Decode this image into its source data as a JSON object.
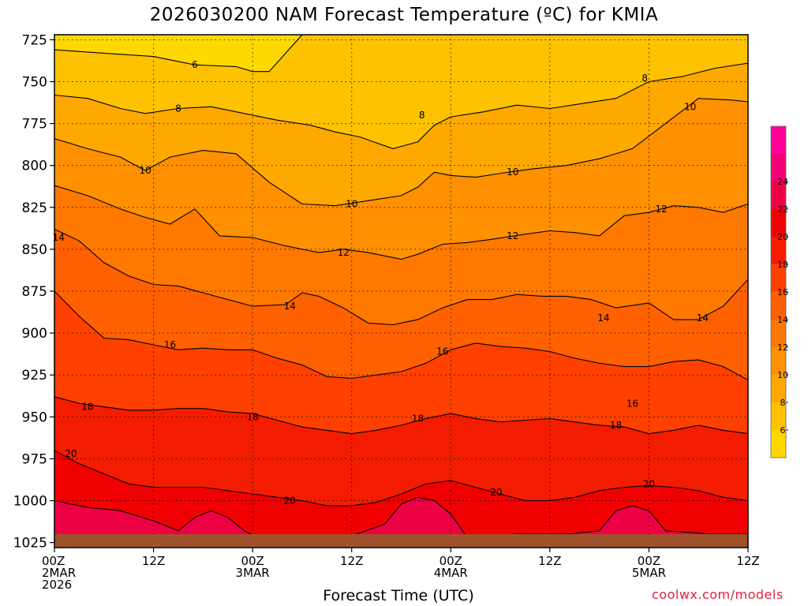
{
  "title": "2026030200 NAM Forecast Temperature (ºC) for KMIA",
  "xlabel": "Forecast Time (UTC)",
  "credit": "coolwx.com/models",
  "chart_data": {
    "type": "heatmap",
    "title": "2026030200 NAM Forecast Temperature (ºC) for KMIA",
    "xlabel": "Forecast Time (UTC)",
    "ylabel": "",
    "x_ticks": [
      {
        "l1": "00Z",
        "l2": "2MAR",
        "l3": "2026",
        "h": 0
      },
      {
        "l1": "12Z",
        "l2": "",
        "l3": "",
        "h": 12
      },
      {
        "l1": "00Z",
        "l2": "3MAR",
        "l3": "",
        "h": 24
      },
      {
        "l1": "12Z",
        "l2": "",
        "l3": "",
        "h": 36
      },
      {
        "l1": "00Z",
        "l2": "4MAR",
        "l3": "",
        "h": 48
      },
      {
        "l1": "12Z",
        "l2": "",
        "l3": "",
        "h": 60
      },
      {
        "l1": "00Z",
        "l2": "5MAR",
        "l3": "",
        "h": 72
      },
      {
        "l1": "12Z",
        "l2": "",
        "l3": "",
        "h": 84
      }
    ],
    "xlim_hours": [
      0,
      84
    ],
    "y_ticks": [
      725,
      750,
      775,
      800,
      825,
      850,
      875,
      900,
      925,
      950,
      975,
      1000,
      1025
    ],
    "ylim": [
      722,
      1028
    ],
    "y_unit": "hPa",
    "grid": true,
    "colorbar": {
      "levels": [
        4,
        6,
        8,
        10,
        12,
        14,
        16,
        18,
        20,
        22,
        24,
        26
      ],
      "labels": [
        6,
        8,
        10,
        12,
        14,
        16,
        18,
        20,
        22,
        24
      ],
      "colors": [
        "#ffd800",
        "#ffc200",
        "#ffa800",
        "#ff9000",
        "#ff7800",
        "#ff6000",
        "#ff4000",
        "#f41c00",
        "#f00000",
        "#ee0044",
        "#f20077",
        "#ff0099"
      ]
    },
    "ground_color": "#a0522d",
    "contours": [
      {
        "level": 6,
        "label_at_h": 17,
        "hours": [
          0,
          6,
          12,
          17,
          22,
          24,
          26,
          30,
          36,
          48,
          60,
          72,
          84
        ],
        "pressures": [
          731,
          733,
          735,
          740,
          741,
          744,
          744,
          722,
          722,
          722,
          722,
          722,
          722
        ]
      },
      {
        "level": 8,
        "label_at_h": 15,
        "hours": [
          0,
          4,
          8,
          11,
          15,
          19,
          23,
          27,
          31,
          34,
          37,
          41,
          44,
          46,
          48,
          52,
          56,
          60,
          64,
          68,
          72,
          76,
          80,
          84
        ],
        "pressures": [
          758,
          760,
          766,
          769,
          766,
          765,
          769,
          773,
          776,
          780,
          783,
          790,
          786,
          776,
          771,
          768,
          764,
          766,
          763,
          760,
          750,
          747,
          742,
          739
        ]
      },
      {
        "level": 10,
        "label_at_h": 11,
        "hours": [
          0,
          4,
          8,
          11,
          14,
          18,
          22,
          26,
          30,
          34,
          38,
          42,
          44,
          46,
          48,
          51,
          55,
          58,
          62,
          66,
          70,
          74,
          78,
          82,
          84
        ],
        "pressures": [
          784,
          790,
          795,
          803,
          795,
          791,
          793,
          810,
          823,
          824,
          821,
          818,
          813,
          804,
          806,
          807,
          804,
          802,
          800,
          796,
          790,
          775,
          760,
          761,
          762
        ]
      },
      {
        "level": 12,
        "label_at_h": 35,
        "hours": [
          0,
          4,
          8,
          11,
          14,
          17,
          20,
          24,
          28,
          32,
          35,
          38,
          42,
          44,
          47,
          50,
          53,
          57,
          60,
          63,
          66,
          69,
          72,
          75,
          78,
          81,
          84
        ],
        "pressures": [
          812,
          818,
          826,
          831,
          835,
          826,
          842,
          843,
          848,
          852,
          850,
          852,
          856,
          853,
          847,
          846,
          844,
          841,
          839,
          840,
          842,
          830,
          828,
          824,
          825,
          828,
          823
        ]
      },
      {
        "level": 14,
        "label_at_h": 28,
        "hours": [
          0,
          3,
          6,
          9,
          12,
          15,
          18,
          21,
          24,
          28,
          30,
          32,
          35,
          38,
          41,
          44,
          47,
          50,
          53,
          56,
          59,
          62,
          65,
          68,
          72,
          75,
          78,
          81,
          84
        ],
        "pressures": [
          838,
          845,
          858,
          866,
          871,
          872,
          876,
          880,
          884,
          883,
          876,
          878,
          885,
          894,
          895,
          892,
          885,
          880,
          880,
          877,
          878,
          878,
          880,
          885,
          882,
          892,
          892,
          884,
          868
        ]
      },
      {
        "level": 16,
        "label_at_h": 14,
        "hours": [
          0,
          3,
          6,
          9,
          12,
          15,
          18,
          21,
          24,
          27,
          30,
          33,
          36,
          39,
          42,
          45,
          48,
          51,
          54,
          57,
          60,
          63,
          66,
          69,
          72,
          75,
          78,
          81,
          84
        ],
        "pressures": [
          875,
          890,
          903,
          904,
          907,
          910,
          909,
          910,
          910,
          915,
          919,
          926,
          927,
          925,
          923,
          918,
          910,
          906,
          908,
          909,
          911,
          915,
          918,
          920,
          920,
          917,
          916,
          920,
          928
        ]
      },
      {
        "level": 18,
        "label_at_h": 4,
        "hours": [
          0,
          3,
          6,
          9,
          12,
          15,
          18,
          21,
          24,
          27,
          30,
          33,
          36,
          39,
          42,
          45,
          48,
          51,
          54,
          57,
          60,
          63,
          66,
          69,
          72,
          75,
          78,
          81,
          84
        ],
        "pressures": [
          938,
          942,
          944,
          946,
          946,
          945,
          945,
          947,
          948,
          952,
          956,
          958,
          960,
          958,
          955,
          951,
          948,
          951,
          953,
          952,
          951,
          953,
          955,
          956,
          960,
          958,
          955,
          958,
          960
        ]
      },
      {
        "level": 20,
        "label_at_h": 2,
        "hours": [
          0,
          3,
          6,
          9,
          12,
          15,
          18,
          21,
          24,
          27,
          30,
          33,
          36,
          39,
          42,
          45,
          48,
          51,
          54,
          57,
          60,
          63,
          66,
          69,
          72,
          75,
          78,
          81,
          84
        ],
        "pressures": [
          970,
          978,
          984,
          990,
          992,
          992,
          992,
          994,
          996,
          998,
          1000,
          1003,
          1003,
          1001,
          996,
          990,
          988,
          992,
          996,
          1000,
          1000,
          998,
          994,
          992,
          991,
          992,
          994,
          998,
          1000
        ]
      },
      {
        "level": 22,
        "label_at_h": 0,
        "hours": [
          0,
          4,
          8,
          12,
          15,
          17,
          19,
          21,
          23,
          25,
          30,
          36,
          40,
          42,
          44,
          46,
          48,
          50,
          56,
          62,
          66,
          68,
          70,
          72,
          74,
          80,
          84
        ],
        "pressures": [
          1000,
          1004,
          1006,
          1012,
          1018,
          1010,
          1006,
          1010,
          1018,
          1023,
          1023,
          1021,
          1014,
          1002,
          998,
          1000,
          1008,
          1022,
          1020,
          1020,
          1018,
          1006,
          1003,
          1006,
          1018,
          1020,
          1020
        ]
      }
    ],
    "contour_labels": [
      {
        "level": 6,
        "h": 17,
        "p": 740
      },
      {
        "level": 8,
        "h": 15,
        "p": 766
      },
      {
        "level": 8,
        "h": 44.5,
        "p": 770
      },
      {
        "level": 8,
        "h": 71.5,
        "p": 748
      },
      {
        "level": 10,
        "h": 11,
        "p": 803
      },
      {
        "level": 10,
        "h": 36,
        "p": 823
      },
      {
        "level": 10,
        "h": 55.5,
        "p": 804
      },
      {
        "level": 10,
        "h": 77,
        "p": 765
      },
      {
        "level": 12,
        "h": 35,
        "p": 852
      },
      {
        "level": 12,
        "h": 55.5,
        "p": 842
      },
      {
        "level": 12,
        "h": 73.5,
        "p": 826
      },
      {
        "level": 14,
        "h": 28.5,
        "p": 884
      },
      {
        "level": 14,
        "h": 66.5,
        "p": 891
      },
      {
        "level": 14,
        "h": 78.5,
        "p": 891
      },
      {
        "level": 14,
        "h": 0.5,
        "p": 843
      },
      {
        "level": 16,
        "h": 14,
        "p": 907
      },
      {
        "level": 16,
        "h": 47,
        "p": 911
      },
      {
        "level": 16,
        "h": 70,
        "p": 942
      },
      {
        "level": 18,
        "h": 4,
        "p": 944
      },
      {
        "level": 18,
        "h": 24,
        "p": 950
      },
      {
        "level": 18,
        "h": 44,
        "p": 951
      },
      {
        "level": 18,
        "h": 68,
        "p": 955
      },
      {
        "level": 20,
        "h": 2,
        "p": 972
      },
      {
        "level": 20,
        "h": 28.5,
        "p": 1000
      },
      {
        "level": 20,
        "h": 53.5,
        "p": 995
      },
      {
        "level": 20,
        "h": 72,
        "p": 990
      }
    ]
  }
}
